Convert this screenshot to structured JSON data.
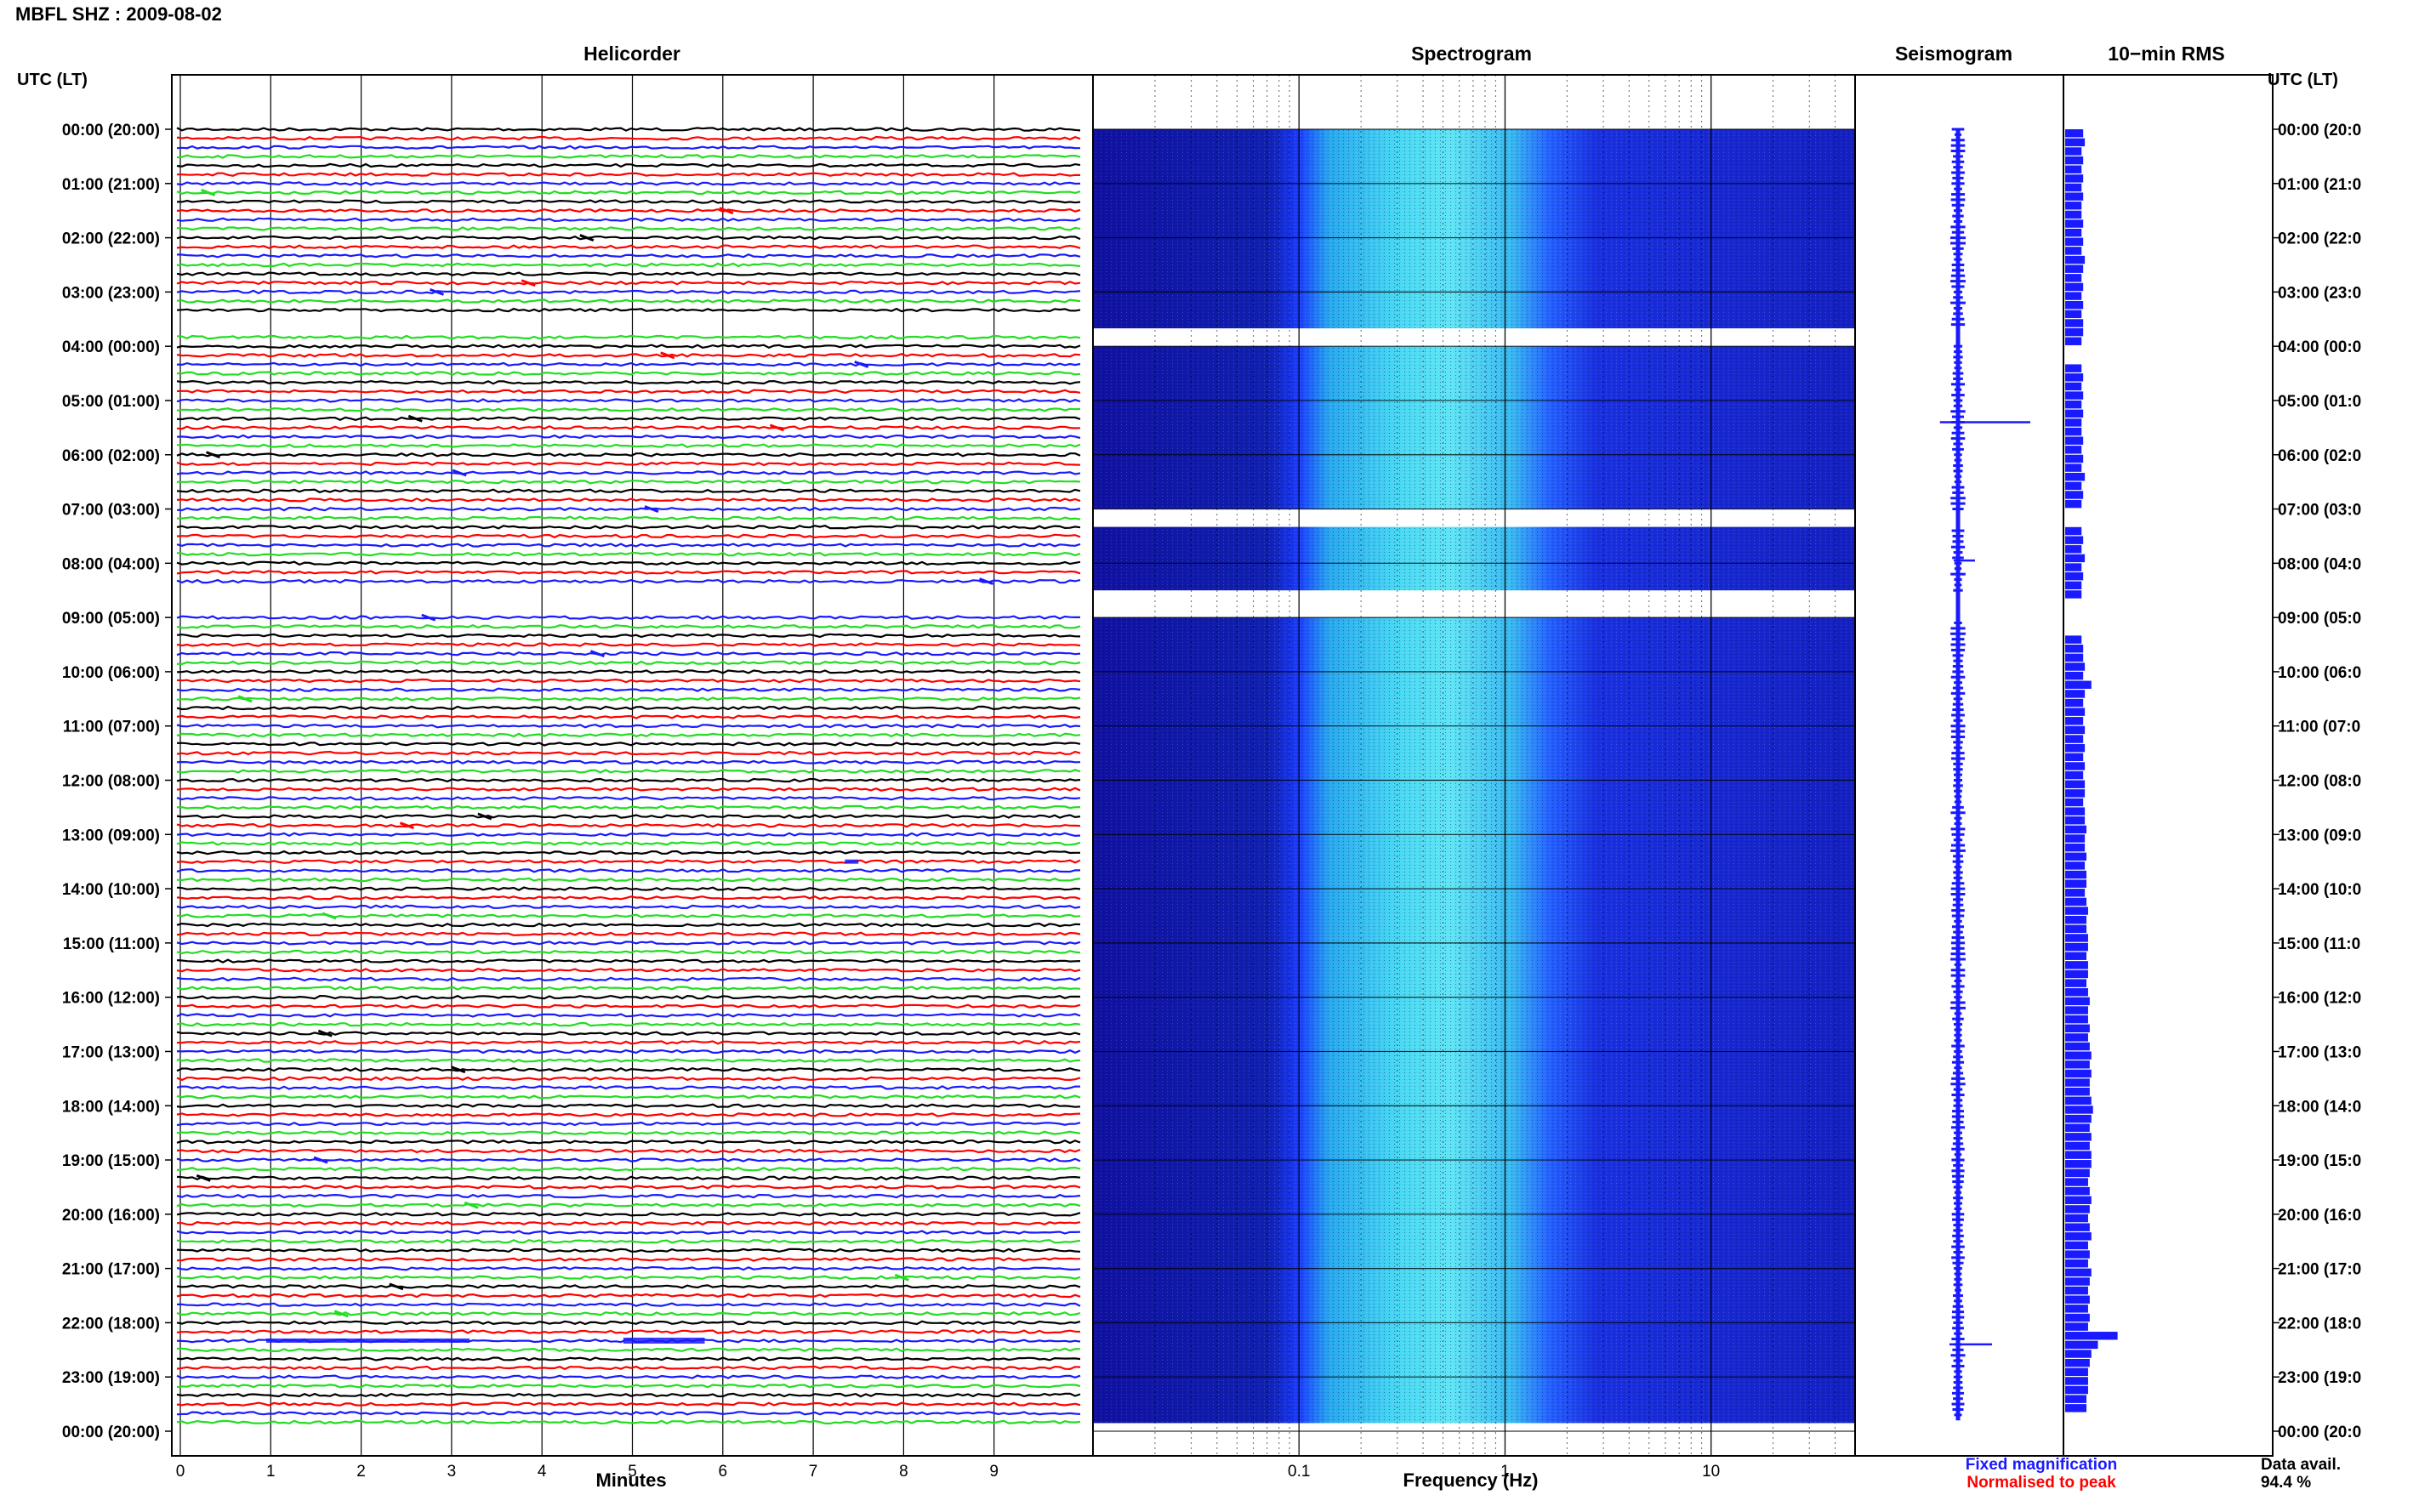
{
  "station_title": "MBFL SHZ : 2009-08-02",
  "panels": {
    "helicorder": "Helicorder",
    "spectrogram": "Spectrogram",
    "seismogram": "Seismogram",
    "rms": "10−min RMS"
  },
  "axis_header": "UTC (LT)",
  "xlabels": {
    "helicorder": "Minutes",
    "spectrogram": "Frequency (Hz)"
  },
  "legend": {
    "fixed": "Fixed magnification",
    "normalised": "Normalised to peak",
    "fixed_color": "#1a1aff",
    "normalised_color": "#ff0000"
  },
  "data_availability": {
    "label": "Data avail.",
    "value": "94.4 %"
  },
  "chart_data": [
    {
      "type": "line",
      "panel": "helicorder",
      "xlabel": "Minutes",
      "x_ticks": [
        "0",
        "1",
        "2",
        "3",
        "4",
        "5",
        "6",
        "7",
        "8",
        "9"
      ],
      "xlim": [
        0,
        10
      ],
      "trace_colors": [
        "#000000",
        "#ff0000",
        "#1a1aff",
        "#22dd22"
      ],
      "time_labels_left": [
        "00:00 (20:00)",
        "01:00 (21:00)",
        "02:00 (22:00)",
        "03:00 (23:00)",
        "04:00 (00:00)",
        "05:00 (01:00)",
        "06:00 (02:00)",
        "07:00 (03:00)",
        "08:00 (04:00)",
        "09:00 (05:00)",
        "10:00 (06:00)",
        "11:00 (07:00)",
        "12:00 (08:00)",
        "13:00 (09:00)",
        "14:00 (10:00)",
        "15:00 (11:00)",
        "16:00 (12:00)",
        "17:00 (13:00)",
        "18:00 (14:00)",
        "19:00 (15:00)",
        "20:00 (16:00)",
        "21:00 (17:00)",
        "22:00 (18:00)",
        "23:00 (19:00)",
        "00:00 (20:00)"
      ],
      "time_labels_right": [
        "00:00 (20:0",
        "01:00 (21:0",
        "02:00 (22:0",
        "03:00 (23:0",
        "04:00 (00:0",
        "05:00 (01:0",
        "06:00 (02:0",
        "07:00 (03:0",
        "08:00 (04:0",
        "09:00 (05:0",
        "10:00 (06:0",
        "11:00 (07:0",
        "12:00 (08:0",
        "13:00 (09:0",
        "14:00 (10:0",
        "15:00 (11:0",
        "16:00 (12:0",
        "17:00 (13:0",
        "18:00 (14:0",
        "19:00 (15:0",
        "20:00 (16:0",
        "21:00 (17:0",
        "22:00 (18:0",
        "23:00 (19:0",
        "00:00 (20:0"
      ],
      "gaps_hours": [
        [
          3.5,
          3.67
        ],
        [
          6.67,
          6.83
        ],
        [
          8.5,
          9.0
        ]
      ]
    },
    {
      "type": "heatmap",
      "panel": "spectrogram",
      "xlabel": "Frequency (Hz)",
      "x_scale": "log",
      "xlim": [
        0.01,
        50
      ],
      "x_tick_labels": [
        "0.1",
        "1",
        "10"
      ],
      "x_tick_values": [
        0.1,
        1,
        10
      ],
      "hours": [
        0,
        24
      ],
      "gaps_hours": [
        [
          3.67,
          4.0
        ],
        [
          7.0,
          7.33
        ],
        [
          8.5,
          9.0
        ]
      ],
      "energy_band_hz": [
        0.2,
        3
      ],
      "colormap": [
        "#1010a0",
        "#1a3cff",
        "#28c8e8",
        "#a8f0ff"
      ]
    },
    {
      "type": "line",
      "panel": "seismogram",
      "series": [
        {
          "name": "Fixed magnification",
          "color": "#1a1aff"
        }
      ],
      "spike_hours": [
        5.4,
        7.95,
        22.4
      ]
    },
    {
      "type": "bar",
      "panel": "rms",
      "orientation": "horizontal",
      "color": "#1a1aff",
      "bins_per_hour": 6,
      "values": [
        0.55,
        0.6,
        0.5,
        0.55,
        0.5,
        0.55,
        0.5,
        0.55,
        0.5,
        0.5,
        0.55,
        0.5,
        0.55,
        0.5,
        0.6,
        0.55,
        0.5,
        0.55,
        0.5,
        0.55,
        0.5,
        0.55,
        0.55,
        0.5,
        0,
        0,
        0.5,
        0.55,
        0.5,
        0.55,
        0.5,
        0.55,
        0.5,
        0.5,
        0.55,
        0.5,
        0.55,
        0.5,
        0.6,
        0.5,
        0.55,
        0.5,
        0,
        0,
        0.5,
        0.55,
        0.5,
        0.6,
        0.5,
        0.55,
        0.5,
        0.5,
        0,
        0,
        0,
        0,
        0.5,
        0.55,
        0.55,
        0.6,
        0.55,
        0.8,
        0.6,
        0.55,
        0.6,
        0.55,
        0.6,
        0.55,
        0.6,
        0.55,
        0.6,
        0.55,
        0.6,
        0.6,
        0.55,
        0.6,
        0.6,
        0.65,
        0.6,
        0.6,
        0.65,
        0.6,
        0.65,
        0.65,
        0.6,
        0.65,
        0.7,
        0.65,
        0.65,
        0.7,
        0.7,
        0.65,
        0.7,
        0.7,
        0.65,
        0.7,
        0.75,
        0.7,
        0.7,
        0.75,
        0.7,
        0.75,
        0.8,
        0.75,
        0.8,
        0.75,
        0.75,
        0.8,
        0.85,
        0.8,
        0.75,
        0.8,
        0.75,
        0.8,
        0.8,
        0.75,
        0.7,
        0.75,
        0.8,
        0.75,
        0.7,
        0.75,
        0.8,
        0.7,
        0.75,
        0.7,
        0.8,
        0.75,
        0.7,
        0.75,
        0.7,
        0.75,
        0.7,
        1.6,
        1.0,
        0.8,
        0.75,
        0.7,
        0.7,
        0.7,
        0.65,
        0.65
      ]
    }
  ]
}
